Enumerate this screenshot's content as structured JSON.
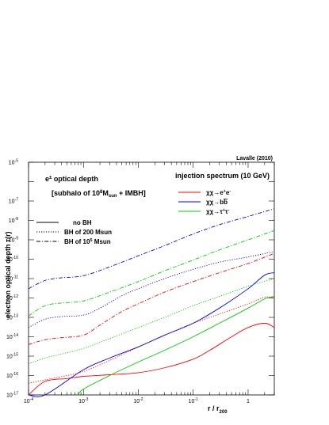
{
  "chart_data": {
    "type": "line",
    "credit": "Lavalle (2010)",
    "annotation_title_prefix": "e",
    "annotation_title_sup": "±",
    "annotation_title_rest": " optical depth",
    "annotation_sub_prefix": "[subhalo of 10",
    "annotation_sub_sup": "8",
    "annotation_sub_mid": "M",
    "annotation_sub_sub": "sun",
    "annotation_sub_rest": " + IMBH]",
    "xlabel_main": "r / r",
    "xlabel_sub": "200",
    "ylabel": "electron optical depth τ(r)",
    "xscale": "log",
    "yscale": "log",
    "xlim": [
      0.0001,
      3
    ],
    "ylim": [
      1e-17,
      1e-05
    ],
    "x_ticks": [
      {
        "v": 0.0001,
        "base": "10",
        "exp": "-4"
      },
      {
        "v": 0.001,
        "base": "10",
        "exp": "-3"
      },
      {
        "v": 0.01,
        "base": "10",
        "exp": "-2"
      },
      {
        "v": 0.1,
        "base": "10",
        "exp": "-1"
      },
      {
        "v": 1,
        "base": "1",
        "exp": ""
      }
    ],
    "y_ticks": [
      {
        "v": 1e-05,
        "base": "10",
        "exp": "-5"
      },
      {
        "v": 1e-07,
        "base": "10",
        "exp": "-7"
      },
      {
        "v": 1e-08,
        "base": "10",
        "exp": "-8"
      },
      {
        "v": 1e-09,
        "base": "10",
        "exp": "-9"
      },
      {
        "v": 1e-10,
        "base": "10",
        "exp": "-10"
      },
      {
        "v": 1e-11,
        "base": "10",
        "exp": "-11"
      },
      {
        "v": 1e-12,
        "base": "10",
        "exp": "-12"
      },
      {
        "v": 1e-13,
        "base": "10",
        "exp": "-13"
      },
      {
        "v": 1e-14,
        "base": "10",
        "exp": "-14"
      },
      {
        "v": 1e-15,
        "base": "10",
        "exp": "-15"
      },
      {
        "v": 1e-16,
        "base": "10",
        "exp": "-16"
      },
      {
        "v": 1e-17,
        "base": "10",
        "exp": "-17"
      }
    ],
    "legend_channels_title": "injection spectrum (10 GeV)",
    "legend_channels": [
      {
        "color": "#ff0000",
        "pre": "χχ→e",
        "sup1": "+",
        "mid": "e",
        "sup2": "-",
        "bar": ""
      },
      {
        "color": "#0000ff",
        "pre": "χχ→b",
        "sup1": "",
        "mid": "",
        "sup2": "",
        "bar": "b"
      },
      {
        "color": "#00cc00",
        "pre": "χχ→τ",
        "sup1": "+",
        "mid": "τ",
        "sup2": "-",
        "bar": ""
      }
    ],
    "legend_styles": [
      {
        "dash": "solid",
        "pre": "no BH",
        "sup": "",
        "post": ""
      },
      {
        "dash": "dot",
        "pre": "BH of 200 Msun",
        "sup": "",
        "post": ""
      },
      {
        "dash": "dashdot",
        "pre": "BH of 10",
        "sup": "5",
        "post": " Msun"
      }
    ],
    "series": [
      {
        "channel": 0,
        "style": "solid",
        "color": "#ff0000",
        "x": [
          0.0001,
          0.0002,
          0.0005,
          0.001,
          0.003,
          0.01,
          0.03,
          0.1,
          0.2,
          0.5,
          1,
          2,
          3
        ],
        "y": [
          1e-17,
          5e-17,
          7e-17,
          9e-17,
          1.1e-16,
          1.4e-16,
          2.5e-16,
          7e-16,
          2e-15,
          1e-14,
          3e-14,
          5e-14,
          3e-14
        ]
      },
      {
        "channel": 0,
        "style": "dot",
        "color": "#ff0000",
        "x": [
          0.0001,
          0.0002,
          0.0005,
          0.001,
          0.003,
          0.01,
          0.03,
          0.1,
          0.3,
          1,
          2,
          3
        ],
        "y": [
          4e-17,
          6e-17,
          1e-16,
          1.6e-16,
          6e-16,
          3e-15,
          1.2e-14,
          5e-14,
          1.5e-13,
          5e-13,
          1.1e-12,
          1e-12
        ]
      },
      {
        "channel": 0,
        "style": "dashdot",
        "color": "#ff0000",
        "x": [
          0.0001,
          0.0002,
          0.0004,
          0.001,
          0.002,
          0.005,
          0.01,
          0.03,
          0.1,
          0.3,
          1,
          3
        ],
        "y": [
          4e-15,
          7e-15,
          9e-15,
          1.2e-14,
          4e-14,
          2e-13,
          5e-13,
          2e-12,
          7e-12,
          2e-11,
          6e-11,
          2e-10
        ]
      },
      {
        "channel": 1,
        "style": "solid",
        "color": "#0000ff",
        "x": [
          0.0001,
          0.0002,
          0.001,
          0.003,
          0.01,
          0.03,
          0.1,
          0.3,
          1,
          2,
          3
        ],
        "y": [
          2e-18,
          1e-17,
          2e-16,
          8e-16,
          3e-15,
          1.2e-14,
          5e-14,
          3e-13,
          3e-12,
          1.5e-11,
          2e-11
        ]
      },
      {
        "channel": 1,
        "style": "dot",
        "color": "#0000ff",
        "x": [
          0.0001,
          0.0002,
          0.0004,
          0.001,
          0.002,
          0.005,
          0.01,
          0.03,
          0.1,
          0.3,
          1,
          3
        ],
        "y": [
          3e-14,
          8e-14,
          1.1e-13,
          1.3e-13,
          3e-13,
          1.3e-12,
          3e-12,
          1e-11,
          3e-11,
          7e-11,
          1.3e-10,
          2.5e-10
        ]
      },
      {
        "channel": 1,
        "style": "dashdot",
        "color": "#0000ff",
        "x": [
          0.0001,
          0.0002,
          0.0004,
          0.001,
          0.003,
          0.01,
          0.03,
          0.1,
          0.3,
          1,
          3
        ],
        "y": [
          3e-12,
          8e-12,
          1.1e-11,
          1.4e-11,
          4e-11,
          1.5e-10,
          5e-10,
          2e-09,
          6e-09,
          1.6e-08,
          4e-08
        ]
      },
      {
        "channel": 2,
        "style": "solid",
        "color": "#00cc00",
        "x": [
          0.0008,
          0.001,
          0.003,
          0.01,
          0.03,
          0.1,
          0.3,
          1,
          2,
          3
        ],
        "y": [
          1e-17,
          2e-17,
          1e-16,
          5e-16,
          2e-15,
          1e-14,
          5e-14,
          3e-13,
          9e-13,
          1.2e-12
        ]
      },
      {
        "channel": 2,
        "style": "dot",
        "color": "#00cc00",
        "x": [
          0.0001,
          0.0002,
          0.0005,
          0.001,
          0.003,
          0.01,
          0.03,
          0.1,
          0.3,
          1,
          3
        ],
        "y": [
          4e-16,
          8e-16,
          1.5e-15,
          2.5e-15,
          8e-15,
          3e-14,
          1e-13,
          4e-13,
          1.2e-12,
          4e-12,
          1e-11
        ]
      },
      {
        "channel": 2,
        "style": "dashdot",
        "color": "#00cc00",
        "x": [
          0.0001,
          0.0002,
          0.0004,
          0.001,
          0.003,
          0.01,
          0.03,
          0.1,
          0.3,
          1,
          3
        ],
        "y": [
          1.2e-13,
          4e-13,
          5.5e-13,
          7e-13,
          2e-12,
          7e-12,
          2.5e-11,
          9e-11,
          3e-10,
          1e-09,
          3e-09
        ]
      }
    ]
  }
}
